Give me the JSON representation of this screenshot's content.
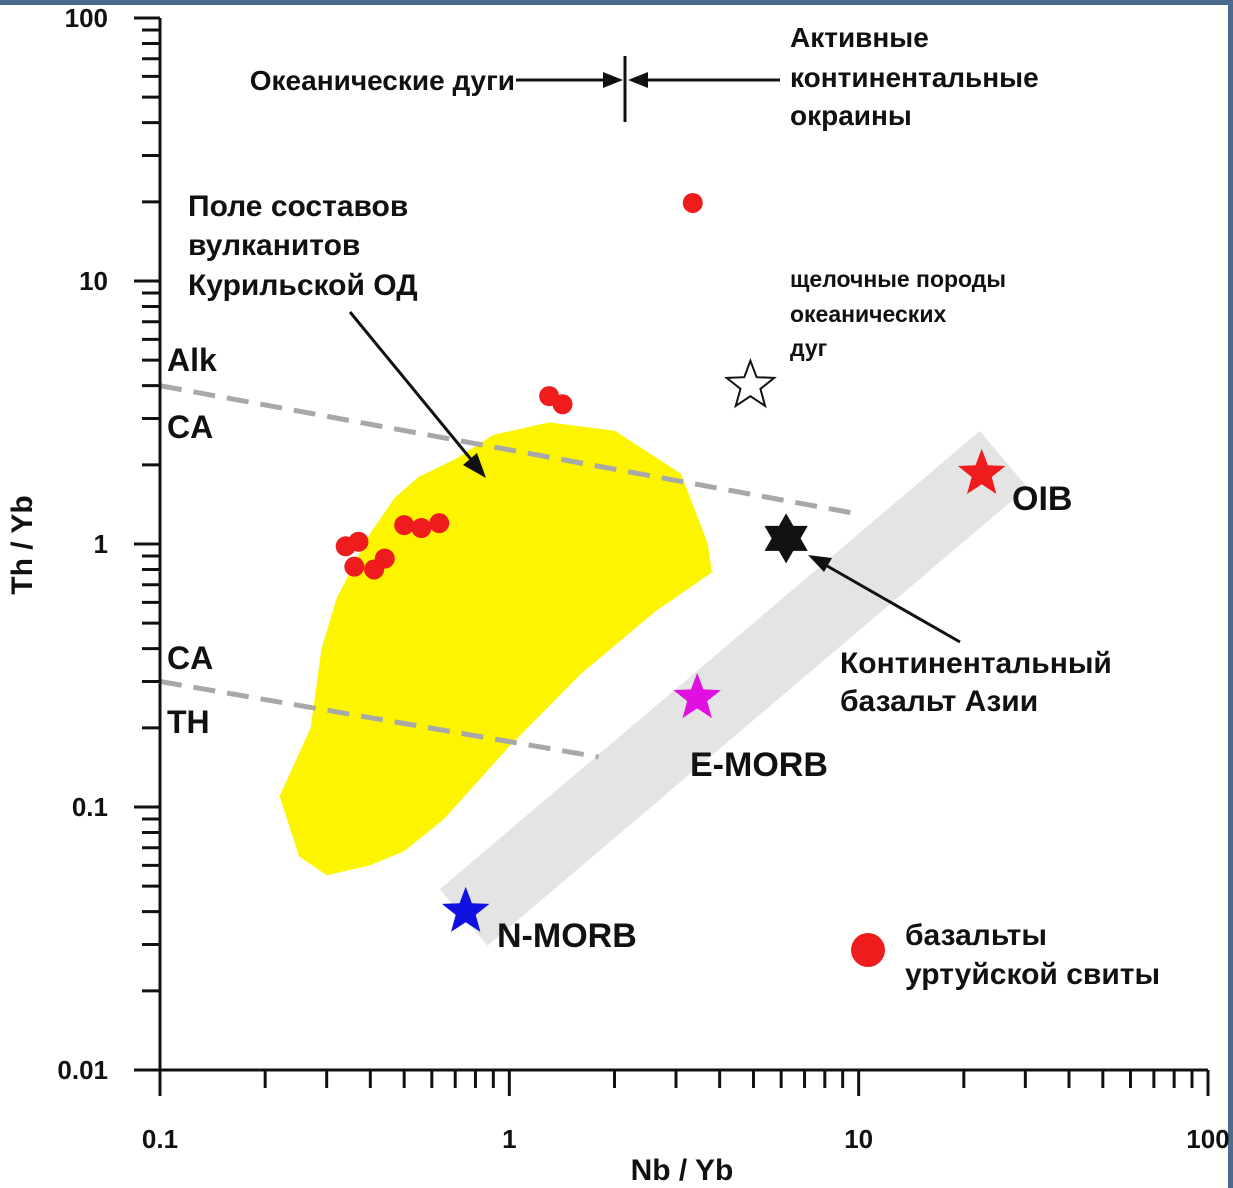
{
  "chart_data": {
    "type": "scatter",
    "x_scale": "log",
    "y_scale": "log",
    "xlabel": "Nb / Yb",
    "ylabel": "Th / Yb",
    "xlim": [
      0.1,
      100
    ],
    "ylim": [
      0.01,
      100
    ],
    "x_ticks": [
      "0.1",
      "1",
      "10",
      "100"
    ],
    "y_ticks": [
      "0.01",
      "0.1",
      "1",
      "10",
      "100"
    ],
    "grid": false,
    "series": [
      {
        "name": "базальты уртуйской свиты",
        "marker": "circle",
        "color": "#ee1c1c",
        "points": [
          [
            3.35,
            19.8
          ],
          [
            1.3,
            3.65
          ],
          [
            1.42,
            3.4
          ],
          [
            0.34,
            0.98
          ],
          [
            0.37,
            1.02
          ],
          [
            0.36,
            0.82
          ],
          [
            0.41,
            0.8
          ],
          [
            0.44,
            0.88
          ],
          [
            0.5,
            1.18
          ],
          [
            0.56,
            1.15
          ],
          [
            0.63,
            1.2
          ]
        ]
      }
    ],
    "references": [
      {
        "name": "N-MORB",
        "marker": "star",
        "color": "#1010e0",
        "x": 0.75,
        "y": 0.04
      },
      {
        "name": "E-MORB",
        "marker": "star",
        "color": "#e010e0",
        "x": 3.45,
        "y": 0.26
      },
      {
        "name": "OIB",
        "marker": "star",
        "color": "#ee1c1c",
        "x": 22.5,
        "y": 1.85
      },
      {
        "name": "Континентальный базальт Азии",
        "marker": "hexagram",
        "color": "#111111",
        "x": 6.2,
        "y": 1.05
      },
      {
        "name": "щелочные породы океанических дуг",
        "marker": "star-open",
        "color": "#ffffff",
        "x": 4.9,
        "y": 4.0
      }
    ],
    "mantle_array": {
      "from": [
        0.74,
        0.038
      ],
      "to": [
        26,
        2.1
      ],
      "color": "#e4e4e4"
    },
    "divider_lines": [
      {
        "from": [
          0.1,
          4.0
        ],
        "to": [
          10.0,
          1.3
        ],
        "upper": "Alk",
        "lower": "CA"
      },
      {
        "from": [
          0.1,
          0.3
        ],
        "to": [
          1.8,
          0.155
        ],
        "upper": "CA",
        "lower": "TH"
      }
    ],
    "arc_boundary_x": 2.15,
    "field": {
      "color": "#fdf400",
      "polygon": [
        [
          0.22,
          0.11
        ],
        [
          0.25,
          0.065
        ],
        [
          0.3,
          0.055
        ],
        [
          0.4,
          0.06
        ],
        [
          0.5,
          0.068
        ],
        [
          0.65,
          0.09
        ],
        [
          1.0,
          0.17
        ],
        [
          1.6,
          0.32
        ],
        [
          2.6,
          0.55
        ],
        [
          3.8,
          0.78
        ],
        [
          3.7,
          1.0
        ],
        [
          3.1,
          1.85
        ],
        [
          2.0,
          2.7
        ],
        [
          1.3,
          2.9
        ],
        [
          0.9,
          2.6
        ],
        [
          0.7,
          2.1
        ],
        [
          0.55,
          1.8
        ],
        [
          0.47,
          1.5
        ],
        [
          0.4,
          1.1
        ],
        [
          0.32,
          0.62
        ],
        [
          0.29,
          0.4
        ],
        [
          0.27,
          0.2
        ]
      ]
    }
  },
  "annotations": {
    "oceanic_arcs": "Океанические дуги",
    "active_margins": [
      "Активные",
      "континентальные",
      "окраины"
    ],
    "field_label": [
      "Поле составов",
      "вулканитов",
      "Курильской ОД"
    ],
    "alkaline_arcs": [
      "щелочные породы",
      "океанических",
      "дуг"
    ],
    "alk": "Alk",
    "ca_upper": "CA",
    "ca_lower": "CA",
    "th": "TH",
    "oib": "OIB",
    "n_morb": "N-MORB",
    "e_morb": "E-MORB",
    "continental_basalt": [
      "Континентальный",
      "базальт Азии"
    ],
    "legend_label": [
      "базальты",
      "уртуйской свиты"
    ]
  }
}
